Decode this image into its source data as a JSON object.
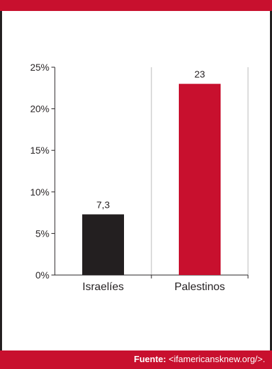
{
  "colors": {
    "accent": "#c8102e",
    "israelies_bar": "#231f20",
    "palestinos_bar": "#c8102e",
    "border": "#231f20"
  },
  "footer": {
    "label": "Fuente:",
    "text": " <ifamericansknew.org/>."
  },
  "chart_data": {
    "type": "bar",
    "categories": [
      "Israelíes",
      "Palestinos"
    ],
    "values": [
      7.3,
      23
    ],
    "data_labels": [
      "7,3",
      "23"
    ],
    "bar_colors": [
      "#231f20",
      "#c8102e"
    ],
    "y_ticks": [
      0,
      5,
      10,
      15,
      20,
      25
    ],
    "y_tick_labels": [
      "0%",
      "5%",
      "10%",
      "15%",
      "20%",
      "25%"
    ],
    "ylim": [
      0,
      25
    ],
    "title": "",
    "xlabel": "",
    "ylabel": "",
    "grid": "vertical-separator"
  }
}
